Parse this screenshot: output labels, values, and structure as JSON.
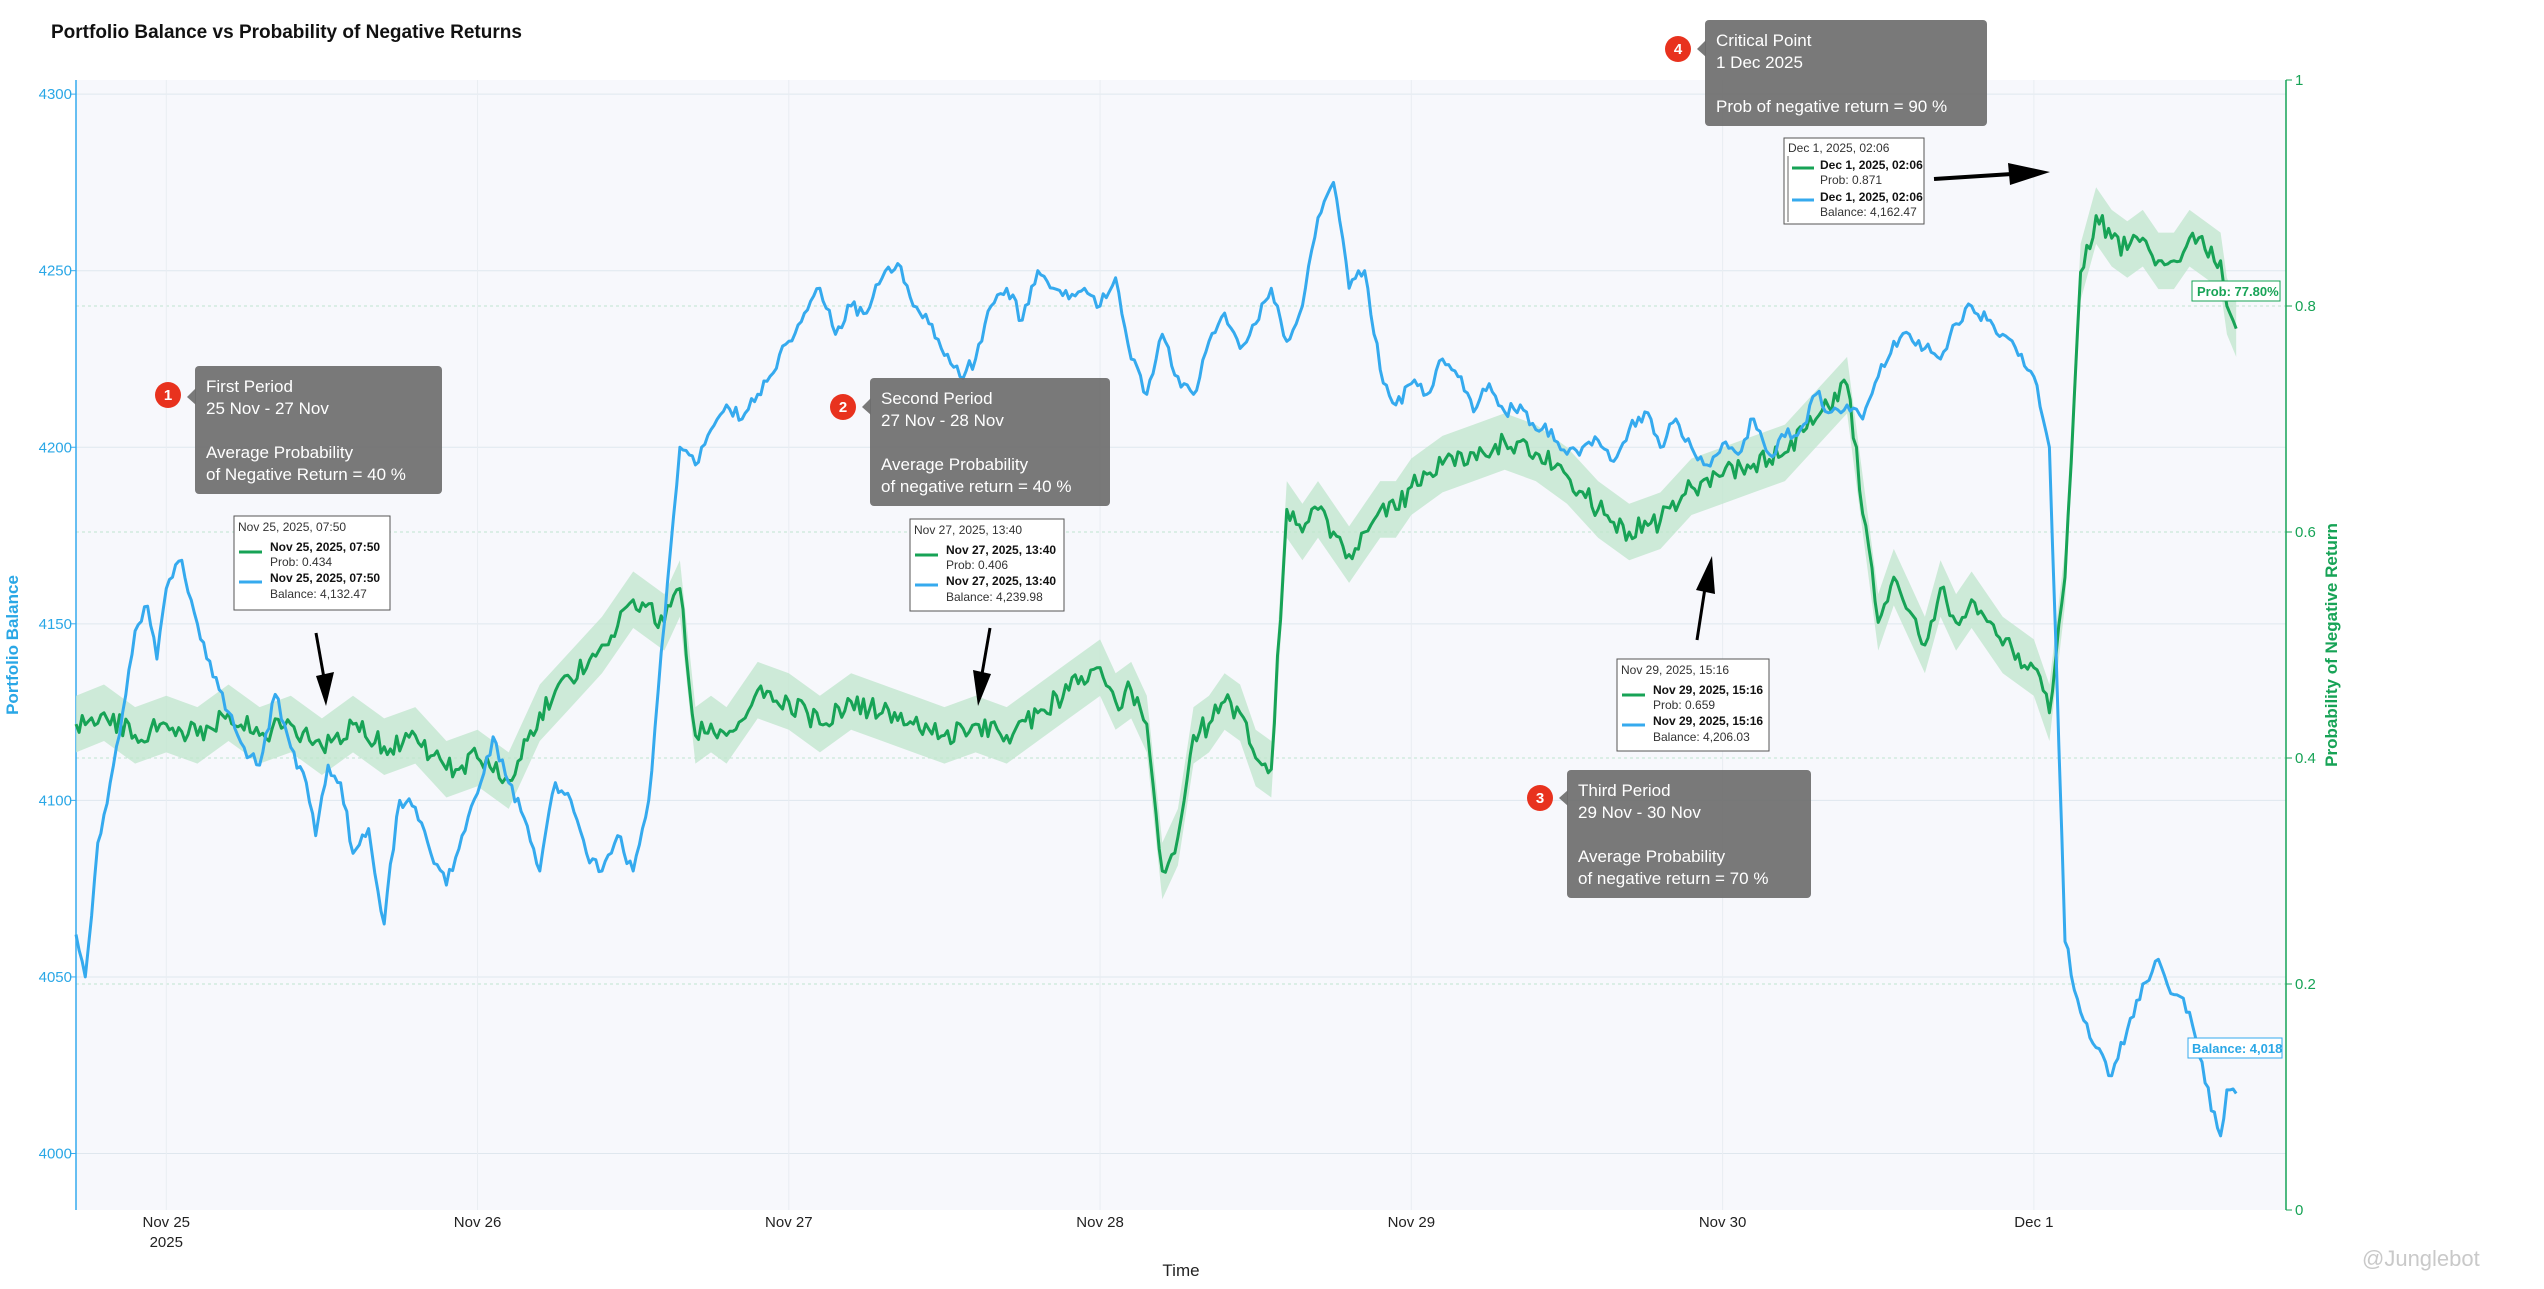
{
  "chart_data": {
    "type": "line",
    "title": "Portfolio Balance vs Probability of Negative Returns",
    "xlabel": "Time",
    "ylabel_left": "Portfolio Balance",
    "ylabel_right": "Probability of Negative Return",
    "x_ticks": [
      {
        "label": "Nov 25",
        "sub": "2025",
        "day": 0
      },
      {
        "label": "Nov 26",
        "sub": "",
        "day": 1
      },
      {
        "label": "Nov 27",
        "sub": "",
        "day": 2
      },
      {
        "label": "Nov 28",
        "sub": "",
        "day": 3
      },
      {
        "label": "Nov 29",
        "sub": "",
        "day": 4
      },
      {
        "label": "Nov 30",
        "sub": "",
        "day": 5
      },
      {
        "label": "Dec 1",
        "sub": "",
        "day": 6
      }
    ],
    "xlim": [
      -0.29,
      6.81
    ],
    "y_left_ticks": [
      "4300",
      "4250",
      "4200",
      "4150",
      "4100",
      "4050",
      "4000"
    ],
    "y_left_tick_values": [
      4300,
      4250,
      4200,
      4150,
      4100,
      4050,
      4000
    ],
    "ylim_left": [
      3984,
      4304
    ],
    "y_right_ticks": [
      "1",
      "0.8",
      "0.6",
      "0.4",
      "0.2",
      "0"
    ],
    "y_right_tick_values": [
      1,
      0.8,
      0.6,
      0.4,
      0.2,
      0
    ],
    "ylim_right": [
      0,
      1
    ],
    "series": [
      {
        "name": "Portfolio Balance",
        "axis": "left",
        "color": "#35aaee",
        "x": [
          -0.29,
          -0.26,
          -0.22,
          -0.18,
          -0.14,
          -0.1,
          -0.06,
          -0.03,
          0.0,
          0.05,
          0.1,
          0.15,
          0.2,
          0.25,
          0.3,
          0.35,
          0.4,
          0.45,
          0.48,
          0.52,
          0.56,
          0.6,
          0.65,
          0.7,
          0.72,
          0.75,
          0.8,
          0.85,
          0.9,
          0.95,
          1.0,
          1.05,
          1.1,
          1.15,
          1.2,
          1.25,
          1.3,
          1.35,
          1.4,
          1.45,
          1.5,
          1.55,
          1.6,
          1.65,
          1.7,
          1.75,
          1.8,
          1.85,
          1.9,
          2.0,
          2.1,
          2.15,
          2.2,
          2.25,
          2.3,
          2.35,
          2.4,
          2.45,
          2.5,
          2.55,
          2.6,
          2.65,
          2.7,
          2.75,
          2.8,
          2.85,
          2.9,
          2.95,
          3.0,
          3.05,
          3.1,
          3.15,
          3.2,
          3.25,
          3.3,
          3.35,
          3.4,
          3.45,
          3.5,
          3.55,
          3.6,
          3.65,
          3.7,
          3.75,
          3.8,
          3.85,
          3.9,
          3.95,
          4.0,
          4.05,
          4.1,
          4.15,
          4.2,
          4.25,
          4.3,
          4.35,
          4.4,
          4.45,
          4.5,
          4.55,
          4.6,
          4.65,
          4.7,
          4.75,
          4.8,
          4.85,
          4.9,
          4.95,
          5.0,
          5.05,
          5.1,
          5.15,
          5.2,
          5.25,
          5.3,
          5.35,
          5.4,
          5.45,
          5.5,
          5.55,
          5.6,
          5.65,
          5.7,
          5.75,
          5.8,
          5.85,
          5.9,
          5.95,
          6.0,
          6.05,
          6.1,
          6.15,
          6.2,
          6.25,
          6.3,
          6.35,
          6.4,
          6.45,
          6.5,
          6.55,
          6.6,
          6.62,
          6.65
        ],
        "values": [
          4062,
          4050,
          4088,
          4105,
          4125,
          4148,
          4155,
          4140,
          4160,
          4168,
          4150,
          4135,
          4125,
          4115,
          4110,
          4130,
          4115,
          4105,
          4090,
          4110,
          4105,
          4085,
          4092,
          4065,
          4082,
          4100,
          4098,
          4085,
          4076,
          4090,
          4102,
          4118,
          4105,
          4095,
          4080,
          4105,
          4100,
          4085,
          4080,
          4090,
          4080,
          4100,
          4150,
          4200,
          4195,
          4205,
          4212,
          4208,
          4215,
          4230,
          4245,
          4232,
          4240,
          4238,
          4248,
          4252,
          4240,
          4235,
          4226,
          4220,
          4225,
          4240,
          4245,
          4236,
          4250,
          4245,
          4242,
          4245,
          4240,
          4248,
          4225,
          4215,
          4232,
          4220,
          4215,
          4230,
          4238,
          4228,
          4235,
          4245,
          4230,
          4240,
          4265,
          4275,
          4245,
          4250,
          4222,
          4212,
          4218,
          4215,
          4225,
          4220,
          4210,
          4218,
          4210,
          4212,
          4205,
          4205,
          4198,
          4200,
          4202,
          4196,
          4205,
          4210,
          4200,
          4208,
          4200,
          4195,
          4201,
          4198,
          4208,
          4198,
          4203,
          4205,
          4215,
          4210,
          4212,
          4208,
          4220,
          4230,
          4232,
          4228,
          4225,
          4235,
          4240,
          4236,
          4232,
          4226,
          4220,
          4200,
          4060,
          4040,
          4030,
          4022,
          4035,
          4048,
          4055,
          4045,
          4040,
          4020,
          4005,
          4018,
          4017
        ]
      },
      {
        "name": "Probability of Negative Return",
        "axis": "right",
        "color": "#17a356",
        "x": [
          -0.29,
          -0.2,
          -0.1,
          0.0,
          0.1,
          0.2,
          0.3,
          0.4,
          0.5,
          0.6,
          0.7,
          0.8,
          0.9,
          1.0,
          1.1,
          1.2,
          1.3,
          1.4,
          1.5,
          1.6,
          1.65,
          1.7,
          1.75,
          1.8,
          1.9,
          2.0,
          2.1,
          2.2,
          2.3,
          2.4,
          2.5,
          2.6,
          2.7,
          2.8,
          2.9,
          3.0,
          3.05,
          3.1,
          3.15,
          3.2,
          3.25,
          3.3,
          3.35,
          3.4,
          3.45,
          3.5,
          3.55,
          3.6,
          3.65,
          3.7,
          3.75,
          3.8,
          3.85,
          3.9,
          3.95,
          4.0,
          4.1,
          4.2,
          4.3,
          4.4,
          4.5,
          4.6,
          4.7,
          4.8,
          4.9,
          5.0,
          5.1,
          5.2,
          5.3,
          5.4,
          5.5,
          5.55,
          5.6,
          5.65,
          5.7,
          5.75,
          5.8,
          5.9,
          6.0,
          6.05,
          6.1,
          6.15,
          6.2,
          6.25,
          6.3,
          6.35,
          6.4,
          6.45,
          6.5,
          6.55,
          6.6,
          6.62,
          6.65
        ],
        "values": [
          0.43,
          0.44,
          0.42,
          0.43,
          0.42,
          0.44,
          0.42,
          0.43,
          0.41,
          0.43,
          0.41,
          0.42,
          0.39,
          0.4,
          0.38,
          0.44,
          0.47,
          0.5,
          0.54,
          0.52,
          0.55,
          0.42,
          0.43,
          0.42,
          0.46,
          0.45,
          0.43,
          0.45,
          0.44,
          0.43,
          0.42,
          0.43,
          0.42,
          0.44,
          0.46,
          0.48,
          0.45,
          0.46,
          0.43,
          0.3,
          0.33,
          0.42,
          0.43,
          0.45,
          0.44,
          0.4,
          0.39,
          0.62,
          0.6,
          0.62,
          0.6,
          0.58,
          0.6,
          0.62,
          0.62,
          0.64,
          0.66,
          0.67,
          0.68,
          0.67,
          0.65,
          0.62,
          0.6,
          0.61,
          0.64,
          0.65,
          0.66,
          0.67,
          0.7,
          0.73,
          0.52,
          0.56,
          0.53,
          0.5,
          0.55,
          0.52,
          0.54,
          0.5,
          0.48,
          0.44,
          0.56,
          0.83,
          0.88,
          0.86,
          0.85,
          0.86,
          0.84,
          0.84,
          0.86,
          0.85,
          0.84,
          0.8,
          0.78
        ]
      }
    ],
    "band": {
      "name": "Probability confidence band",
      "color": "#bfe6cc",
      "half_width": 0.025
    },
    "annotations": [
      {
        "num": "1",
        "lines": [
          "First Period",
          "25 Nov - 27 Nov",
          "",
          "Average Probability",
          "of Negative Return = 40 %"
        ]
      },
      {
        "num": "2",
        "lines": [
          "Second Period",
          "27 Nov - 28 Nov",
          "",
          "Average Probability",
          "of negative return = 40 %"
        ]
      },
      {
        "num": "3",
        "lines": [
          "Third Period",
          "29 Nov - 30 Nov",
          "",
          "Average Probability",
          " of negative return = 70 %"
        ]
      },
      {
        "num": "4",
        "lines": [
          "Critical Point",
          "1 Dec 2025",
          "",
          "Prob of negative return = 90 %"
        ]
      }
    ],
    "tooltips": [
      {
        "head": "Nov 25, 2025, 07:50",
        "t1": "Nov 25, 2025, 07:50",
        "v1": "Prob: 0.434",
        "t2": "Nov 25, 2025, 07:50",
        "v2": "Balance: 4,132.47"
      },
      {
        "head": "Nov 27, 2025, 13:40",
        "t1": "Nov 27, 2025, 13:40",
        "v1": "Prob: 0.406",
        "t2": "Nov 27, 2025, 13:40",
        "v2": "Balance: 4,239.98"
      },
      {
        "head": "Nov 29, 2025, 15:16",
        "t1": "Nov 29, 2025, 15:16",
        "v1": "Prob: 0.659",
        "t2": "Nov 29, 2025, 15:16",
        "v2": "Balance: 4,206.03"
      },
      {
        "head": "Dec 1, 2025, 02:06",
        "t1": "Dec 1, 2025, 02:06",
        "v1": "Prob: 0.871",
        "t2": "Dec 1, 2025, 02:06",
        "v2": "Balance: 4,162.47"
      }
    ],
    "last_value_tags": {
      "prob": "Prob: 77.80%",
      "balance": "Balance: 4,018"
    },
    "watermark": "@Junglebot"
  }
}
